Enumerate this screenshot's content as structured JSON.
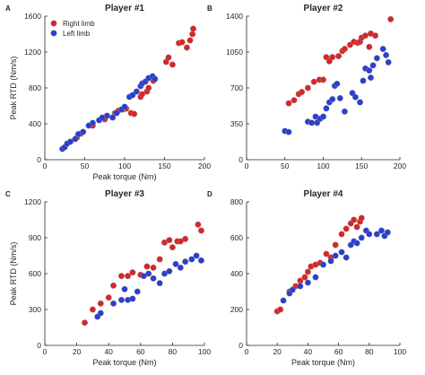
{
  "colors": {
    "right": "#d62728",
    "left": "#2a3fcf",
    "axis": "#262626",
    "marker_edge": "#9a9a9a"
  },
  "chart_data": [
    {
      "type": "scatter",
      "letter": "A",
      "title": "Player #1",
      "xlabel": "Peak torque (Nm)",
      "ylabel": "Peak RTD (Nm/s)",
      "xlim": [
        0,
        200
      ],
      "ylim": [
        0,
        1600
      ],
      "xticks": [
        "0",
        "50",
        "100",
        "150",
        "200"
      ],
      "yticks": [
        "0",
        "400",
        "800",
        "1200",
        "1600"
      ],
      "grid": false,
      "legend": {
        "position": "top-left",
        "entries": [
          "Right limb",
          "Left limb"
        ]
      },
      "series": [
        {
          "name": "Right limb",
          "color": "right",
          "points": [
            [
              40,
              245
            ],
            [
              45,
              290
            ],
            [
              60,
              380
            ],
            [
              75,
              450
            ],
            [
              88,
              520
            ],
            [
              92,
              545
            ],
            [
              98,
              560
            ],
            [
              102,
              570
            ],
            [
              108,
              520
            ],
            [
              112,
              510
            ],
            [
              120,
              700
            ],
            [
              122,
              730
            ],
            [
              128,
              760
            ],
            [
              130,
              800
            ],
            [
              136,
              880
            ],
            [
              152,
              1090
            ],
            [
              155,
              1140
            ],
            [
              160,
              1060
            ],
            [
              168,
              1300
            ],
            [
              172,
              1310
            ],
            [
              178,
              1250
            ],
            [
              182,
              1330
            ],
            [
              185,
              1400
            ],
            [
              186,
              1460
            ]
          ]
        },
        {
          "name": "Left limb",
          "color": "left",
          "points": [
            [
              22,
              120
            ],
            [
              25,
              140
            ],
            [
              28,
              180
            ],
            [
              32,
              200
            ],
            [
              38,
              230
            ],
            [
              42,
              285
            ],
            [
              48,
              310
            ],
            [
              55,
              380
            ],
            [
              60,
              410
            ],
            [
              68,
              440
            ],
            [
              72,
              470
            ],
            [
              78,
              490
            ],
            [
              85,
              470
            ],
            [
              90,
              520
            ],
            [
              96,
              560
            ],
            [
              100,
              590
            ],
            [
              106,
              700
            ],
            [
              110,
              720
            ],
            [
              115,
              760
            ],
            [
              120,
              820
            ],
            [
              122,
              850
            ],
            [
              126,
              870
            ],
            [
              130,
              910
            ],
            [
              135,
              930
            ],
            [
              138,
              900
            ]
          ]
        }
      ]
    },
    {
      "type": "scatter",
      "letter": "B",
      "title": "Player #2",
      "xlabel": "",
      "ylabel": "",
      "xlim": [
        0,
        200
      ],
      "ylim": [
        0,
        1400
      ],
      "xticks": [
        "0",
        "50",
        "100",
        "150",
        "200"
      ],
      "yticks": [
        "0",
        "350",
        "700",
        "1050",
        "1400"
      ],
      "grid": false,
      "legend": null,
      "series": [
        {
          "name": "Right limb",
          "color": "right",
          "points": [
            [
              55,
              550
            ],
            [
              62,
              580
            ],
            [
              68,
              640
            ],
            [
              72,
              660
            ],
            [
              80,
              700
            ],
            [
              88,
              760
            ],
            [
              95,
              780
            ],
            [
              100,
              780
            ],
            [
              104,
              1000
            ],
            [
              108,
              960
            ],
            [
              112,
              1000
            ],
            [
              120,
              1010
            ],
            [
              125,
              1060
            ],
            [
              128,
              1080
            ],
            [
              135,
              1120
            ],
            [
              140,
              1150
            ],
            [
              145,
              1140
            ],
            [
              148,
              1150
            ],
            [
              150,
              1190
            ],
            [
              155,
              1210
            ],
            [
              160,
              1100
            ],
            [
              162,
              1230
            ],
            [
              168,
              1210
            ],
            [
              188,
              1370
            ]
          ]
        },
        {
          "name": "Left limb",
          "color": "left",
          "points": [
            [
              50,
              280
            ],
            [
              55,
              270
            ],
            [
              80,
              370
            ],
            [
              85,
              360
            ],
            [
              90,
              420
            ],
            [
              92,
              360
            ],
            [
              96,
              400
            ],
            [
              100,
              420
            ],
            [
              104,
              500
            ],
            [
              108,
              560
            ],
            [
              112,
              590
            ],
            [
              115,
              720
            ],
            [
              118,
              740
            ],
            [
              122,
              600
            ],
            [
              128,
              470
            ],
            [
              138,
              650
            ],
            [
              142,
              610
            ],
            [
              148,
              560
            ],
            [
              152,
              770
            ],
            [
              155,
              890
            ],
            [
              160,
              870
            ],
            [
              162,
              800
            ],
            [
              165,
              920
            ],
            [
              170,
              990
            ],
            [
              178,
              1080
            ],
            [
              182,
              1020
            ],
            [
              185,
              950
            ]
          ]
        }
      ]
    },
    {
      "type": "scatter",
      "letter": "C",
      "title": "Player #3",
      "xlabel": "Peak torque (Nm)",
      "ylabel": "Peak RTD (Nm/s)",
      "xlim": [
        0,
        100
      ],
      "ylim": [
        0,
        1200
      ],
      "xticks": [
        "0",
        "20",
        "40",
        "60",
        "80",
        "100"
      ],
      "yticks": [
        "0",
        "300",
        "600",
        "900",
        "1200"
      ],
      "grid": false,
      "legend": null,
      "series": [
        {
          "name": "Right limb",
          "color": "right",
          "points": [
            [
              25,
              190
            ],
            [
              30,
              300
            ],
            [
              35,
              350
            ],
            [
              40,
              400
            ],
            [
              43,
              500
            ],
            [
              48,
              580
            ],
            [
              52,
              580
            ],
            [
              55,
              610
            ],
            [
              60,
              590
            ],
            [
              64,
              660
            ],
            [
              68,
              650
            ],
            [
              72,
              720
            ],
            [
              75,
              860
            ],
            [
              78,
              880
            ],
            [
              80,
              820
            ],
            [
              83,
              870
            ],
            [
              85,
              870
            ],
            [
              88,
              890
            ],
            [
              96,
              1010
            ],
            [
              98,
              960
            ]
          ]
        },
        {
          "name": "Left limb",
          "color": "left",
          "points": [
            [
              33,
              240
            ],
            [
              35,
              270
            ],
            [
              43,
              350
            ],
            [
              48,
              380
            ],
            [
              50,
              470
            ],
            [
              52,
              380
            ],
            [
              55,
              390
            ],
            [
              58,
              450
            ],
            [
              62,
              580
            ],
            [
              65,
              600
            ],
            [
              68,
              560
            ],
            [
              72,
              520
            ],
            [
              75,
              600
            ],
            [
              78,
              620
            ],
            [
              82,
              680
            ],
            [
              85,
              650
            ],
            [
              88,
              700
            ],
            [
              92,
              720
            ],
            [
              95,
              750
            ],
            [
              98,
              710
            ]
          ]
        }
      ]
    },
    {
      "type": "scatter",
      "letter": "D",
      "title": "Player #4",
      "xlabel": "Peak torque (Nm)",
      "ylabel": "",
      "xlim": [
        0,
        100
      ],
      "ylim": [
        0,
        800
      ],
      "xticks": [
        "0",
        "20",
        "40",
        "60",
        "80",
        "100"
      ],
      "yticks": [
        "0",
        "200",
        "400",
        "600",
        "800"
      ],
      "grid": false,
      "legend": null,
      "series": [
        {
          "name": "Right limb",
          "color": "right",
          "points": [
            [
              20,
              190
            ],
            [
              22,
              200
            ],
            [
              28,
              300
            ],
            [
              32,
              330
            ],
            [
              35,
              360
            ],
            [
              38,
              380
            ],
            [
              40,
              410
            ],
            [
              42,
              440
            ],
            [
              45,
              450
            ],
            [
              48,
              460
            ],
            [
              52,
              510
            ],
            [
              55,
              490
            ],
            [
              58,
              560
            ],
            [
              62,
              620
            ],
            [
              65,
              650
            ],
            [
              68,
              680
            ],
            [
              70,
              700
            ],
            [
              72,
              660
            ],
            [
              74,
              690
            ],
            [
              75,
              710
            ]
          ]
        },
        {
          "name": "Left limb",
          "color": "left",
          "points": [
            [
              24,
              250
            ],
            [
              28,
              290
            ],
            [
              30,
              310
            ],
            [
              35,
              330
            ],
            [
              40,
              350
            ],
            [
              45,
              380
            ],
            [
              50,
              450
            ],
            [
              55,
              470
            ],
            [
              58,
              500
            ],
            [
              62,
              520
            ],
            [
              65,
              490
            ],
            [
              68,
              560
            ],
            [
              70,
              580
            ],
            [
              72,
              570
            ],
            [
              75,
              600
            ],
            [
              78,
              640
            ],
            [
              80,
              620
            ],
            [
              85,
              620
            ],
            [
              88,
              640
            ],
            [
              90,
              610
            ],
            [
              92,
              630
            ]
          ]
        }
      ]
    }
  ]
}
